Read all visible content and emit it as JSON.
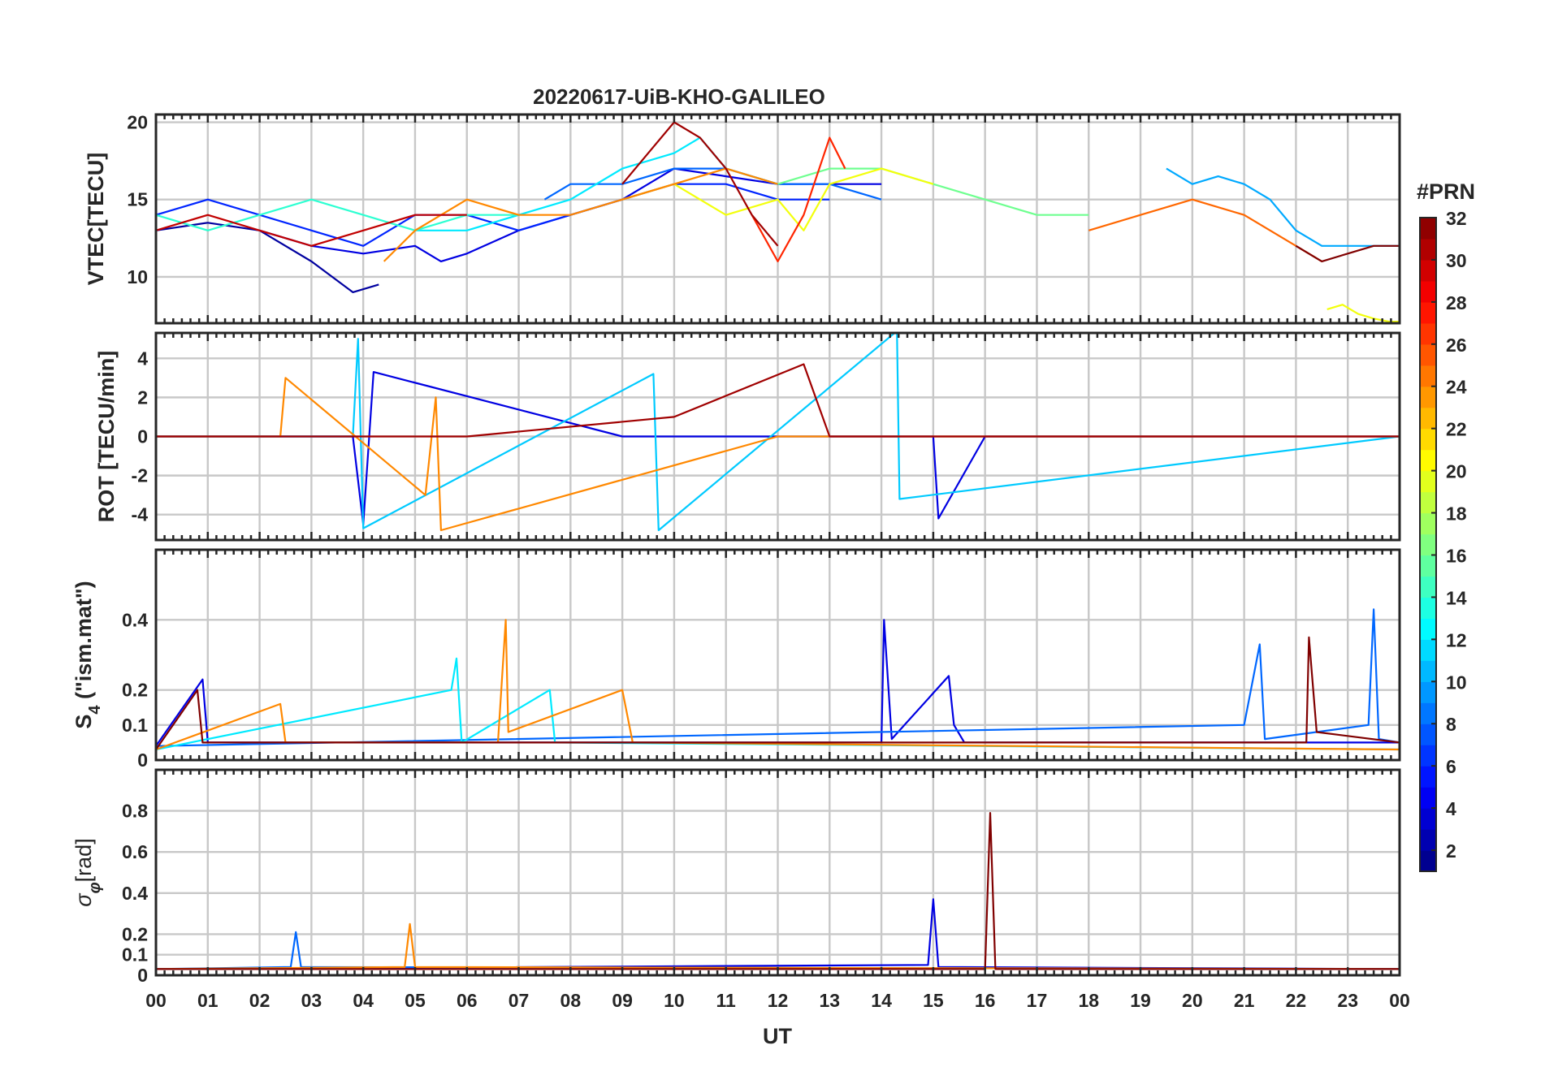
{
  "title": "20220617-UiB-KHO-GALILEO",
  "xlabel": "UT",
  "colorbar": {
    "label": "#PRN",
    "range": [
      1,
      32
    ],
    "ticks": [
      "2",
      "4",
      "6",
      "8",
      "10",
      "12",
      "14",
      "16",
      "18",
      "20",
      "22",
      "24",
      "26",
      "28",
      "30",
      "32"
    ],
    "colormap": "jet"
  },
  "x_ticks": [
    "00",
    "01",
    "02",
    "03",
    "04",
    "05",
    "06",
    "07",
    "08",
    "09",
    "10",
    "11",
    "12",
    "13",
    "14",
    "15",
    "16",
    "17",
    "18",
    "19",
    "20",
    "21",
    "22",
    "23",
    "00"
  ],
  "chart_data": [
    {
      "type": "line",
      "ylabel": "VTEC[TECU]",
      "ylim": [
        7,
        20.5
      ],
      "yticks": [
        10,
        15,
        20
      ],
      "ytick_labels": [
        "10",
        "15",
        "20"
      ],
      "grid": true,
      "x_units": "hours UT",
      "series": [
        {
          "prn": 2,
          "x": [
            0,
            1,
            2,
            3,
            3.8,
            4.3
          ],
          "y": [
            13,
            13.5,
            13,
            11,
            9,
            9.5
          ]
        },
        {
          "prn": 4,
          "x": [
            2,
            3,
            4,
            5,
            5.5,
            6,
            7,
            8,
            9,
            10,
            11,
            12,
            13,
            14
          ],
          "y": [
            13,
            12,
            11.5,
            12,
            11,
            11.5,
            13,
            14,
            15,
            17,
            16.5,
            16,
            16,
            16
          ]
        },
        {
          "prn": 6,
          "x": [
            0,
            1,
            2,
            3,
            4,
            5,
            6,
            7,
            8,
            9,
            10,
            11,
            12,
            13
          ],
          "y": [
            14,
            15,
            14,
            13,
            12,
            14,
            14,
            13,
            14,
            15,
            16,
            16,
            15,
            15
          ]
        },
        {
          "prn": 8,
          "x": [
            7.5,
            8,
            9,
            10,
            11,
            12,
            13,
            14
          ],
          "y": [
            15,
            16,
            16,
            17,
            17,
            16,
            16,
            15
          ]
        },
        {
          "prn": 10,
          "x": [
            19.5,
            20,
            20.5,
            21,
            21.5,
            22,
            22.5,
            23,
            24
          ],
          "y": [
            17,
            16,
            16.5,
            16,
            15,
            13,
            12,
            12,
            12
          ]
        },
        {
          "prn": 12,
          "x": [
            5,
            6,
            7,
            8,
            9,
            10,
            10.5,
            11,
            12
          ],
          "y": [
            13,
            13,
            14,
            15,
            17,
            18,
            19,
            17,
            16
          ]
        },
        {
          "prn": 14,
          "x": [
            0,
            1,
            2,
            3,
            4,
            5,
            6,
            7
          ],
          "y": [
            14,
            13,
            14,
            15,
            14,
            13,
            14,
            14
          ]
        },
        {
          "prn": 16,
          "x": [
            12,
            13,
            14,
            15,
            16,
            17,
            18
          ],
          "y": [
            16,
            17,
            17,
            16,
            15,
            14,
            14
          ]
        },
        {
          "prn": 20,
          "x": [
            9,
            10,
            11,
            12,
            12.5,
            13,
            14,
            15
          ],
          "y": [
            15,
            16,
            14,
            15,
            13,
            16,
            17,
            16
          ]
        },
        {
          "prn": 20,
          "x": [
            22.6,
            22.9,
            23.2,
            23.5,
            23.8,
            24
          ],
          "y": [
            7.9,
            8.2,
            7.6,
            7.3,
            7.1,
            7.1
          ]
        },
        {
          "prn": 24,
          "x": [
            4.4,
            5,
            6,
            7,
            8,
            9,
            10,
            11,
            12
          ],
          "y": [
            11,
            13,
            15,
            14,
            14,
            15,
            16,
            17,
            16
          ]
        },
        {
          "prn": 25,
          "x": [
            18,
            19,
            20,
            21,
            22,
            22.5
          ],
          "y": [
            13,
            14,
            15,
            14,
            12,
            11
          ]
        },
        {
          "prn": 27,
          "x": [
            11.5,
            12,
            12.5,
            13,
            13.3
          ],
          "y": [
            14,
            11,
            14,
            19,
            17
          ]
        },
        {
          "prn": 30,
          "x": [
            0,
            1,
            2,
            3,
            4,
            5,
            6
          ],
          "y": [
            13,
            14,
            13,
            12,
            13,
            14,
            14
          ]
        },
        {
          "prn": 31,
          "x": [
            9,
            9.5,
            10,
            10.5,
            11,
            11.5,
            12
          ],
          "y": [
            16,
            18,
            20,
            19,
            17,
            14,
            12
          ]
        },
        {
          "prn": 32,
          "x": [
            22,
            22.5,
            23,
            23.5,
            24
          ],
          "y": [
            12,
            11,
            11.5,
            12,
            12
          ]
        }
      ]
    },
    {
      "type": "line",
      "ylabel": "ROT [TECU/min]",
      "ylim": [
        -5.3,
        5.3
      ],
      "yticks": [
        -4,
        -2,
        0,
        2,
        4
      ],
      "ytick_labels": [
        "-4",
        "-2",
        "0",
        "2",
        "4"
      ],
      "grid": true,
      "x_units": "hours UT",
      "series": [
        {
          "prn": 4,
          "x": [
            0,
            3.8,
            4,
            4.2,
            9,
            11,
            15,
            15.1,
            16,
            24
          ],
          "y": [
            0,
            0,
            -4.5,
            3.3,
            0,
            0,
            0,
            -4.2,
            0,
            0
          ]
        },
        {
          "prn": 11,
          "x": [
            0,
            3.8,
            3.9,
            4.0,
            9.6,
            9.7,
            14.3,
            14.35,
            24
          ],
          "y": [
            0,
            0,
            5,
            -4.7,
            3.2,
            -4.8,
            5.4,
            -3.2,
            0
          ]
        },
        {
          "prn": 24,
          "x": [
            0,
            2.4,
            2.5,
            5.2,
            5.4,
            5.5,
            12,
            24
          ],
          "y": [
            0,
            0,
            3,
            -3,
            2,
            -4.8,
            0,
            0
          ]
        },
        {
          "prn": 31,
          "x": [
            0,
            6,
            10,
            12.5,
            13,
            16,
            24
          ],
          "y": [
            0,
            0,
            1,
            3.7,
            0,
            0,
            0
          ]
        }
      ]
    },
    {
      "type": "line",
      "ylabel": "S4 (\"ism.mat\")",
      "ylabel_main": "S",
      "ylabel_sub": "4",
      "ylabel_tail": "  (\"ism.mat\")",
      "ylim": [
        0,
        0.6
      ],
      "yticks": [
        0,
        0.1,
        0.2,
        0.4
      ],
      "ytick_labels": [
        "0",
        "0.1",
        "0.2",
        "0.4"
      ],
      "grid": true,
      "x_units": "hours UT",
      "series": [
        {
          "prn": 4,
          "x": [
            0,
            0.9,
            1.0,
            14.0,
            14.05,
            14.2,
            15.3,
            15.4,
            15.6,
            24
          ],
          "y": [
            0.04,
            0.23,
            0.05,
            0.05,
            0.4,
            0.06,
            0.24,
            0.1,
            0.05,
            0.05
          ]
        },
        {
          "prn": 8,
          "x": [
            0,
            21,
            21.3,
            21.4,
            23.4,
            23.5,
            23.6,
            24
          ],
          "y": [
            0.04,
            0.1,
            0.33,
            0.06,
            0.1,
            0.43,
            0.06,
            0.05
          ]
        },
        {
          "prn": 12,
          "x": [
            0,
            5.7,
            5.8,
            5.9,
            7.6,
            7.7,
            24
          ],
          "y": [
            0.03,
            0.2,
            0.29,
            0.05,
            0.2,
            0.05,
            0.03
          ]
        },
        {
          "prn": 24,
          "x": [
            0,
            2.4,
            2.5,
            6.6,
            6.75,
            6.8,
            9.0,
            9.2,
            24
          ],
          "y": [
            0.03,
            0.16,
            0.05,
            0.05,
            0.4,
            0.08,
            0.2,
            0.05,
            0.03
          ]
        },
        {
          "prn": 32,
          "x": [
            0,
            0.8,
            0.9,
            22.2,
            22.25,
            22.4,
            24
          ],
          "y": [
            0.03,
            0.2,
            0.05,
            0.05,
            0.35,
            0.08,
            0.05
          ]
        }
      ]
    },
    {
      "type": "line",
      "ylabel": "σφ[rad]",
      "ylabel_main": "σ",
      "ylabel_sub": "φ",
      "ylabel_tail": "[rad]",
      "ylim": [
        0,
        1.0
      ],
      "yticks": [
        0,
        0.1,
        0.2,
        0.4,
        0.6,
        0.8
      ],
      "ytick_labels": [
        "0",
        "0.1",
        "0.2",
        "0.4",
        "0.6",
        "0.8"
      ],
      "grid": true,
      "x_units": "hours UT",
      "series": [
        {
          "prn": 4,
          "x": [
            0,
            14.9,
            15.0,
            15.1,
            24
          ],
          "y": [
            0.03,
            0.05,
            0.37,
            0.04,
            0.03
          ]
        },
        {
          "prn": 8,
          "x": [
            0,
            2.6,
            2.7,
            2.8,
            24
          ],
          "y": [
            0.03,
            0.04,
            0.21,
            0.04,
            0.03
          ]
        },
        {
          "prn": 24,
          "x": [
            0,
            4.8,
            4.9,
            5.0,
            24
          ],
          "y": [
            0.03,
            0.04,
            0.25,
            0.04,
            0.03
          ]
        },
        {
          "prn": 32,
          "x": [
            0,
            16.0,
            16.1,
            16.2,
            24
          ],
          "y": [
            0.03,
            0.03,
            0.79,
            0.03,
            0.03
          ]
        }
      ]
    }
  ]
}
